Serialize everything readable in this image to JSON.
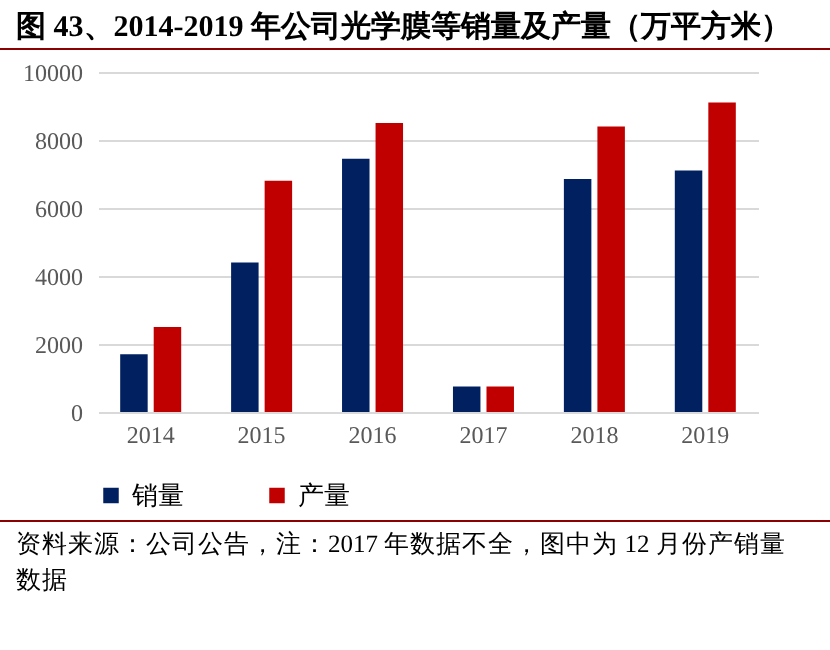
{
  "chart_data": {
    "type": "bar",
    "title": "图 43、2014-2019 年公司光学膜等销量及产量（万平方米）",
    "categories": [
      "2014",
      "2015",
      "2016",
      "2017",
      "2018",
      "2019"
    ],
    "series": [
      {
        "name": "销量",
        "color": "#002060",
        "values": [
          1700,
          4400,
          7450,
          750,
          6850,
          7100
        ]
      },
      {
        "name": "产量",
        "color": "#c00000",
        "values": [
          2500,
          6800,
          8500,
          750,
          8400,
          9100
        ]
      }
    ],
    "ylim": [
      0,
      10000
    ],
    "yticks": [
      0,
      2000,
      4000,
      6000,
      8000,
      10000
    ],
    "grid": "y",
    "legend": "bottom",
    "annotations": [
      "资料来源：公司公告，注：2017 年数据不全，图中为 12 月份产销量数据"
    ]
  }
}
